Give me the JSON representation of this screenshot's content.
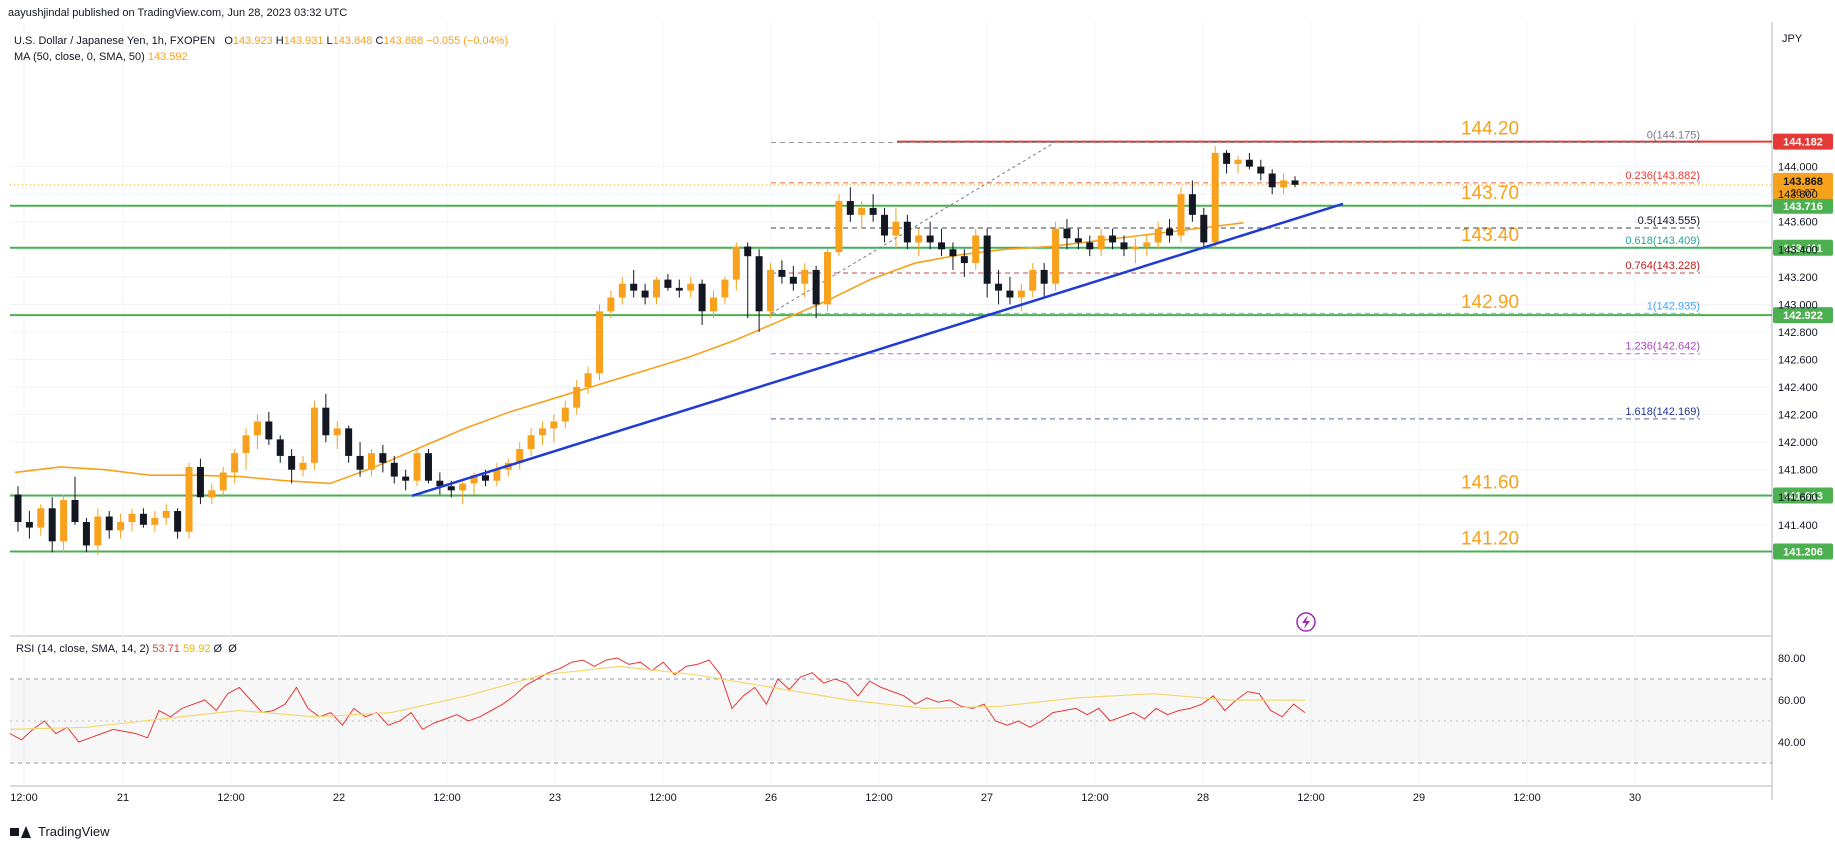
{
  "header": {
    "publisher": "aayushjindal published on TradingView.com, Jun 28, 2023 03:32 UTC",
    "symbol": "U.S. Dollar / Japanese Yen, 1h, FXOPEN",
    "ohlc": {
      "o_label": "O",
      "o": "143.923",
      "h_label": "H",
      "h": "143.931",
      "l_label": "L",
      "l": "143.848",
      "c_label": "C",
      "c": "143.868",
      "change": "−0.055 (−0.04%)"
    },
    "ma_label": "MA (50, close, 0, SMA, 50)",
    "ma_value": "143.592",
    "rsi_label": "RSI (14, close, SMA, 14, 2)",
    "rsi_value": "53.71",
    "rsi_ma_value": "59.92",
    "rsi_extra": "Ø  Ø"
  },
  "currency": "JPY",
  "footer": {
    "brand": "TradingView"
  },
  "colors": {
    "bull": "#f7a11d",
    "bear": "#131722",
    "support": "#4caf50",
    "resistance": "#e53935",
    "trendline": "#1f3bd4",
    "ma": "#f7a11d",
    "rsi": "#e53935",
    "rsi_ma": "#f5d76e"
  },
  "chart_data": {
    "type": "candlestick",
    "interval": "1h",
    "y_axis": {
      "range": [
        140.6,
        145.05
      ],
      "ticks": [
        "144.000",
        "143.800",
        "143.600",
        "143.400",
        "143.200",
        "143.000",
        "142.800",
        "142.600",
        "142.400",
        "142.200",
        "142.000",
        "141.800",
        "141.600",
        "141.400"
      ],
      "tick_values": [
        144.0,
        143.8,
        143.6,
        143.4,
        143.2,
        143.0,
        142.8,
        142.6,
        142.4,
        142.2,
        142.0,
        141.8,
        141.6,
        141.4
      ]
    },
    "x_axis": {
      "ticks": [
        "12:00",
        "21",
        "12:00",
        "22",
        "12:00",
        "23",
        "12:00",
        "26",
        "12:00",
        "27",
        "12:00",
        "28",
        "12:00",
        "29",
        "12:00",
        "30"
      ],
      "tick_bars": [
        2,
        24,
        48,
        72,
        96,
        120,
        144,
        168,
        192,
        216,
        240,
        264,
        288,
        312,
        336,
        360
      ]
    },
    "horizontal_levels": [
      {
        "label": "144.20",
        "price": 144.182,
        "tag": "144.182",
        "role": "resistance"
      },
      {
        "label": "143.70",
        "price": 143.716,
        "tag": "143.716",
        "role": "support"
      },
      {
        "label": "143.40",
        "price": 143.411,
        "tag": "143.411",
        "role": "support"
      },
      {
        "label": "142.90",
        "price": 142.922,
        "tag": "142.922",
        "role": "support"
      },
      {
        "label": "141.60",
        "price": 141.613,
        "tag": "141.613",
        "role": "support"
      },
      {
        "label": "141.20",
        "price": 141.206,
        "tag": "141.206",
        "role": "support"
      }
    ],
    "current_price": {
      "price": 143.868,
      "label": "143.868",
      "countdown": "26:07"
    },
    "fibonacci": [
      {
        "ratio": "0",
        "price": 144.175,
        "color": "#787b86"
      },
      {
        "ratio": "0.236",
        "price": 143.882,
        "color": "#e53935"
      },
      {
        "ratio": "0.5",
        "price": 143.555,
        "color": "#131722"
      },
      {
        "ratio": "0.618",
        "price": 143.409,
        "color": "#26a69a"
      },
      {
        "ratio": "0.764",
        "price": 143.228,
        "color": "#b71c1c"
      },
      {
        "ratio": "1",
        "price": 142.935,
        "color": "#42a5f5"
      },
      {
        "ratio": "1.236",
        "price": 142.642,
        "color": "#ab47bc"
      },
      {
        "ratio": "1.618",
        "price": 142.169,
        "color": "#283593"
      }
    ],
    "trendline": [
      {
        "bar": 43,
        "price": 141.61
      },
      {
        "bar": 282,
        "price": 143.73
      }
    ],
    "candles": [
      [
        141.62,
        141.68,
        141.35,
        141.42
      ],
      [
        141.42,
        141.5,
        141.3,
        141.38
      ],
      [
        141.38,
        141.55,
        141.32,
        141.52
      ],
      [
        141.52,
        141.6,
        141.2,
        141.28
      ],
      [
        141.28,
        141.62,
        141.2,
        141.58
      ],
      [
        141.58,
        141.75,
        141.4,
        141.42
      ],
      [
        141.42,
        141.45,
        141.2,
        141.25
      ],
      [
        141.25,
        141.52,
        141.18,
        141.46
      ],
      [
        141.46,
        141.5,
        141.3,
        141.36
      ],
      [
        141.36,
        141.48,
        141.3,
        141.42
      ],
      [
        141.42,
        141.52,
        141.35,
        141.48
      ],
      [
        141.48,
        141.52,
        141.38,
        141.4
      ],
      [
        141.4,
        141.5,
        141.35,
        141.45
      ],
      [
        141.45,
        141.55,
        141.4,
        141.5
      ],
      [
        141.5,
        141.52,
        141.3,
        141.35
      ],
      [
        141.35,
        141.85,
        141.3,
        141.82
      ],
      [
        141.82,
        141.88,
        141.55,
        141.6
      ],
      [
        141.6,
        141.7,
        141.55,
        141.65
      ],
      [
        141.65,
        141.82,
        141.6,
        141.78
      ],
      [
        141.78,
        141.95,
        141.7,
        141.92
      ],
      [
        141.92,
        142.1,
        141.8,
        142.05
      ],
      [
        142.05,
        142.2,
        141.95,
        142.15
      ],
      [
        142.15,
        142.22,
        141.98,
        142.02
      ],
      [
        142.02,
        142.05,
        141.85,
        141.9
      ],
      [
        141.9,
        141.95,
        141.7,
        141.8
      ],
      [
        141.8,
        141.9,
        141.75,
        141.85
      ],
      [
        141.85,
        142.3,
        141.8,
        142.25
      ],
      [
        142.25,
        142.35,
        142.0,
        142.05
      ],
      [
        142.05,
        142.15,
        141.95,
        142.1
      ],
      [
        142.1,
        142.12,
        141.85,
        141.9
      ],
      [
        141.9,
        142.0,
        141.75,
        141.8
      ],
      [
        141.8,
        141.95,
        141.75,
        141.92
      ],
      [
        141.92,
        141.98,
        141.78,
        141.85
      ],
      [
        141.85,
        141.9,
        141.7,
        141.75
      ],
      [
        141.75,
        141.8,
        141.65,
        141.72
      ],
      [
        141.72,
        141.95,
        141.68,
        141.92
      ],
      [
        141.92,
        141.95,
        141.7,
        141.72
      ],
      [
        141.72,
        141.78,
        141.62,
        141.68
      ],
      [
        141.68,
        141.72,
        141.6,
        141.65
      ],
      [
        141.65,
        141.72,
        141.55,
        141.7
      ],
      [
        141.7,
        141.78,
        141.62,
        141.76
      ],
      [
        141.76,
        141.8,
        141.68,
        141.72
      ],
      [
        141.72,
        141.85,
        141.68,
        141.8
      ],
      [
        141.8,
        141.88,
        141.75,
        141.85
      ],
      [
        141.85,
        142.0,
        141.8,
        141.95
      ],
      [
        141.95,
        142.1,
        141.9,
        142.05
      ],
      [
        142.05,
        142.15,
        141.98,
        142.1
      ],
      [
        142.1,
        142.2,
        142.0,
        142.15
      ],
      [
        142.15,
        142.3,
        142.1,
        142.25
      ],
      [
        142.25,
        142.45,
        142.2,
        142.4
      ],
      [
        142.4,
        142.55,
        142.35,
        142.5
      ],
      [
        142.5,
        143.0,
        142.45,
        142.95
      ],
      [
        142.95,
        143.1,
        142.9,
        143.05
      ],
      [
        143.05,
        143.2,
        143.0,
        143.15
      ],
      [
        143.15,
        143.25,
        143.05,
        143.1
      ],
      [
        143.1,
        143.15,
        143.0,
        143.05
      ],
      [
        143.05,
        143.2,
        143.0,
        143.18
      ],
      [
        143.18,
        143.22,
        143.1,
        143.12
      ],
      [
        143.12,
        143.18,
        143.05,
        143.1
      ],
      [
        143.1,
        143.2,
        143.05,
        143.15
      ],
      [
        143.15,
        143.18,
        142.85,
        142.95
      ],
      [
        142.95,
        143.1,
        142.9,
        143.05
      ],
      [
        143.05,
        143.2,
        143.0,
        143.18
      ],
      [
        143.18,
        143.45,
        143.1,
        143.42
      ],
      [
        143.42,
        143.45,
        142.9,
        143.35
      ],
      [
        143.35,
        143.4,
        142.8,
        142.95
      ],
      [
        142.95,
        143.3,
        142.9,
        143.25
      ],
      [
        143.25,
        143.32,
        143.15,
        143.2
      ],
      [
        143.2,
        143.28,
        143.1,
        143.15
      ],
      [
        143.15,
        143.3,
        143.05,
        143.25
      ],
      [
        143.25,
        143.28,
        142.9,
        143.0
      ],
      [
        143.0,
        143.4,
        142.95,
        143.38
      ],
      [
        143.38,
        143.8,
        143.35,
        143.75
      ],
      [
        143.75,
        143.85,
        143.6,
        143.65
      ],
      [
        143.65,
        143.75,
        143.55,
        143.7
      ],
      [
        143.7,
        143.8,
        143.6,
        143.65
      ],
      [
        143.65,
        143.7,
        143.45,
        143.5
      ],
      [
        143.5,
        143.7,
        143.4,
        143.6
      ],
      [
        143.6,
        143.65,
        143.4,
        143.45
      ],
      [
        143.45,
        143.55,
        143.35,
        143.5
      ],
      [
        143.5,
        143.6,
        143.4,
        143.45
      ],
      [
        143.45,
        143.55,
        143.35,
        143.4
      ],
      [
        143.4,
        143.45,
        143.25,
        143.35
      ],
      [
        143.35,
        143.4,
        143.2,
        143.3
      ],
      [
        143.3,
        143.55,
        143.25,
        143.5
      ],
      [
        143.5,
        143.55,
        143.05,
        143.15
      ],
      [
        143.15,
        143.25,
        143.0,
        143.1
      ],
      [
        143.1,
        143.2,
        143.0,
        143.05
      ],
      [
        143.05,
        143.15,
        142.95,
        143.1
      ],
      [
        143.1,
        143.3,
        143.05,
        143.25
      ],
      [
        143.25,
        143.3,
        143.05,
        143.15
      ],
      [
        143.15,
        143.6,
        143.1,
        143.55
      ],
      [
        143.55,
        143.62,
        143.4,
        143.48
      ],
      [
        143.48,
        143.55,
        143.4,
        143.45
      ],
      [
        143.45,
        143.5,
        143.35,
        143.4
      ],
      [
        143.4,
        143.55,
        143.35,
        143.5
      ],
      [
        143.5,
        143.55,
        143.4,
        143.45
      ],
      [
        143.45,
        143.5,
        143.35,
        143.4
      ],
      [
        143.4,
        143.48,
        143.3,
        143.42
      ],
      [
        143.42,
        143.5,
        143.35,
        143.45
      ],
      [
        143.45,
        143.6,
        143.4,
        143.55
      ],
      [
        143.55,
        143.62,
        143.45,
        143.5
      ],
      [
        143.5,
        143.85,
        143.45,
        143.8
      ],
      [
        143.8,
        143.9,
        143.6,
        143.65
      ],
      [
        143.65,
        143.7,
        143.4,
        143.45
      ],
      [
        143.45,
        144.15,
        143.4,
        144.1
      ],
      [
        144.1,
        144.12,
        143.95,
        144.02
      ],
      [
        144.02,
        144.08,
        143.95,
        144.05
      ],
      [
        144.05,
        144.1,
        143.98,
        144.0
      ],
      [
        144.0,
        144.05,
        143.9,
        143.95
      ],
      [
        143.95,
        143.98,
        143.8,
        143.85
      ],
      [
        143.85,
        143.95,
        143.8,
        143.9
      ],
      [
        143.9,
        143.93,
        143.85,
        143.868
      ]
    ],
    "ma50": [
      {
        "bar": 0,
        "price": 141.78
      },
      {
        "bar": 10,
        "price": 141.82
      },
      {
        "bar": 20,
        "price": 141.8
      },
      {
        "bar": 30,
        "price": 141.76
      },
      {
        "bar": 40,
        "price": 141.76
      },
      {
        "bar": 50,
        "price": 141.75
      },
      {
        "bar": 60,
        "price": 141.72
      },
      {
        "bar": 70,
        "price": 141.7
      },
      {
        "bar": 80,
        "price": 141.82
      },
      {
        "bar": 90,
        "price": 141.96
      },
      {
        "bar": 100,
        "price": 142.1
      },
      {
        "bar": 110,
        "price": 142.22
      },
      {
        "bar": 120,
        "price": 142.32
      },
      {
        "bar": 130,
        "price": 142.42
      },
      {
        "bar": 140,
        "price": 142.52
      },
      {
        "bar": 150,
        "price": 142.62
      },
      {
        "bar": 160,
        "price": 142.74
      },
      {
        "bar": 170,
        "price": 142.88
      },
      {
        "bar": 180,
        "price": 143.02
      },
      {
        "bar": 190,
        "price": 143.18
      },
      {
        "bar": 200,
        "price": 143.3
      },
      {
        "bar": 210,
        "price": 143.36
      },
      {
        "bar": 220,
        "price": 143.4
      },
      {
        "bar": 230,
        "price": 143.42
      },
      {
        "bar": 240,
        "price": 143.46
      },
      {
        "bar": 250,
        "price": 143.5
      },
      {
        "bar": 260,
        "price": 143.54
      },
      {
        "bar": 273,
        "price": 143.592
      }
    ],
    "rsi": {
      "range": [
        20,
        90
      ],
      "ticks": [
        "80.00",
        "60.00",
        "40.00"
      ],
      "tick_values": [
        80,
        60,
        40
      ],
      "bands": [
        70,
        30
      ],
      "midline": 50,
      "values": [
        44,
        41,
        46,
        50,
        44,
        47,
        40,
        42,
        44,
        46,
        45,
        44,
        42,
        55,
        52,
        56,
        58,
        60,
        55,
        63,
        66,
        60,
        54,
        55,
        58,
        66,
        56,
        52,
        54,
        48,
        56,
        52,
        54,
        48,
        50,
        54,
        46,
        49,
        51,
        53,
        50,
        52,
        55,
        58,
        62,
        67,
        70,
        73,
        75,
        78,
        79,
        76,
        79,
        80,
        77,
        78,
        74,
        78,
        72,
        76,
        77,
        79,
        72,
        56,
        62,
        66,
        58,
        70,
        65,
        71,
        73,
        68,
        70,
        68,
        62,
        69,
        66,
        64,
        62,
        58,
        61,
        59,
        60,
        57,
        56,
        58,
        50,
        48,
        50,
        47,
        50,
        54,
        55,
        56,
        53,
        56,
        50,
        52,
        54,
        51,
        56,
        53,
        55,
        56,
        58,
        62,
        55,
        60,
        64,
        63,
        55,
        52,
        58,
        54
      ],
      "ma_values": [
        {
          "bar": 0,
          "value": 46
        },
        {
          "bar": 20,
          "value": 47
        },
        {
          "bar": 40,
          "value": 51
        },
        {
          "bar": 60,
          "value": 55
        },
        {
          "bar": 80,
          "value": 52
        },
        {
          "bar": 100,
          "value": 54
        },
        {
          "bar": 120,
          "value": 62
        },
        {
          "bar": 140,
          "value": 72
        },
        {
          "bar": 160,
          "value": 76
        },
        {
          "bar": 180,
          "value": 72
        },
        {
          "bar": 200,
          "value": 66
        },
        {
          "bar": 220,
          "value": 60
        },
        {
          "bar": 240,
          "value": 56
        },
        {
          "bar": 260,
          "value": 57
        },
        {
          "bar": 280,
          "value": 61
        },
        {
          "bar": 300,
          "value": 63
        },
        {
          "bar": 320,
          "value": 60
        },
        {
          "bar": 340,
          "value": 59.92
        }
      ]
    }
  }
}
